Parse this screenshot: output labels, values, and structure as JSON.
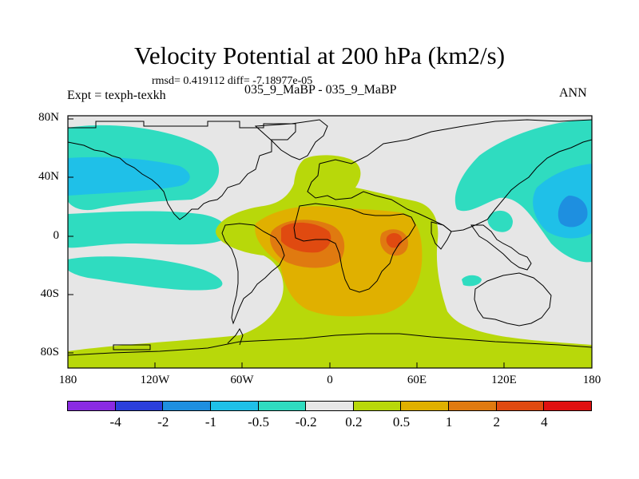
{
  "title": "Velocity Potential at 200 hPa (km2/s)",
  "stats_line": "rmsd= 0.419112 diff= -7.18977e-05",
  "left_string": "Expt = texph-texkh",
  "center_string": "035_9_MaBP - 035_9_MaBP",
  "right_string": "ANN",
  "lat_labels": [
    "80N",
    "40N",
    "0",
    "40S",
    "80S"
  ],
  "lon_labels": [
    "180",
    "120W",
    "60W",
    "0",
    "60E",
    "120E",
    "180"
  ],
  "colorbar": {
    "labels": [
      "-4",
      "-2",
      "-1",
      "-0.5",
      "-0.2",
      "0.2",
      "0.5",
      "1",
      "2",
      "4"
    ],
    "colors": [
      "#8a2be2",
      "#2b3fdc",
      "#1e8fe0",
      "#1fc0e8",
      "#2fdcc0",
      "#e6e6e6",
      "#b8d80a",
      "#e0b000",
      "#e07a10",
      "#e04a10",
      "#e01010"
    ]
  },
  "field_colors": {
    "neutral": "#e6e6e6",
    "teal": "#2fdcc0",
    "cyan": "#1fc0e8",
    "blue": "#1e8fe0",
    "yellow": "#b8d80a",
    "amber": "#e0b000",
    "orange": "#e07a10",
    "red_orange": "#e04a10",
    "coast": "#000000"
  }
}
